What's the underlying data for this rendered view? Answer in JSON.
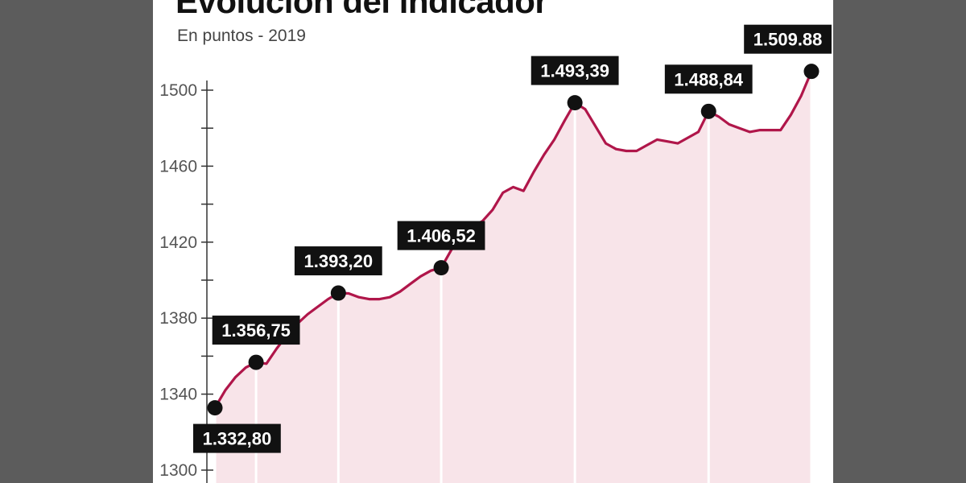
{
  "chart_data": {
    "type": "area",
    "title": "Evolución del indicador",
    "subtitle": "En puntos - 2019",
    "ylim": [
      1300,
      1510
    ],
    "yticks": [
      1300,
      1340,
      1380,
      1420,
      1460,
      1500
    ],
    "grid": false,
    "legend": "none",
    "colors": {
      "line": "#b0164a",
      "fill": "#f8e4e9",
      "marker": "#111111",
      "callout_bg": "#111111",
      "callout_text": "#ffffff"
    },
    "series": [
      {
        "values": [
          1332.8,
          1342,
          1349,
          1354,
          1356.75,
          1356,
          1364,
          1371,
          1377,
          1382,
          1386,
          1390,
          1393.2,
          1393,
          1391,
          1390,
          1390,
          1391,
          1394,
          1398,
          1402,
          1405,
          1406.52,
          1416,
          1422,
          1428,
          1431,
          1437,
          1446,
          1449,
          1447,
          1457,
          1466,
          1474,
          1484,
          1493.39,
          1490,
          1481,
          1472,
          1469,
          1468,
          1468,
          1471,
          1474,
          1473,
          1472,
          1475,
          1478,
          1488.84,
          1486,
          1482,
          1480,
          1478,
          1479,
          1479,
          1479,
          1487,
          1497,
          1509.88
        ]
      }
    ],
    "highlights": [
      {
        "index": 0,
        "label": "1.332,80",
        "position": "below"
      },
      {
        "index": 4,
        "label": "1.356,75",
        "position": "above"
      },
      {
        "index": 12,
        "label": "1.393,20",
        "position": "above"
      },
      {
        "index": 22,
        "label": "1.406,52",
        "position": "above"
      },
      {
        "index": 35,
        "label": "1.493,39",
        "position": "above"
      },
      {
        "index": 48,
        "label": "1.488,84",
        "position": "above"
      },
      {
        "index": 58,
        "label": "1.509.88",
        "position": "above"
      }
    ]
  }
}
